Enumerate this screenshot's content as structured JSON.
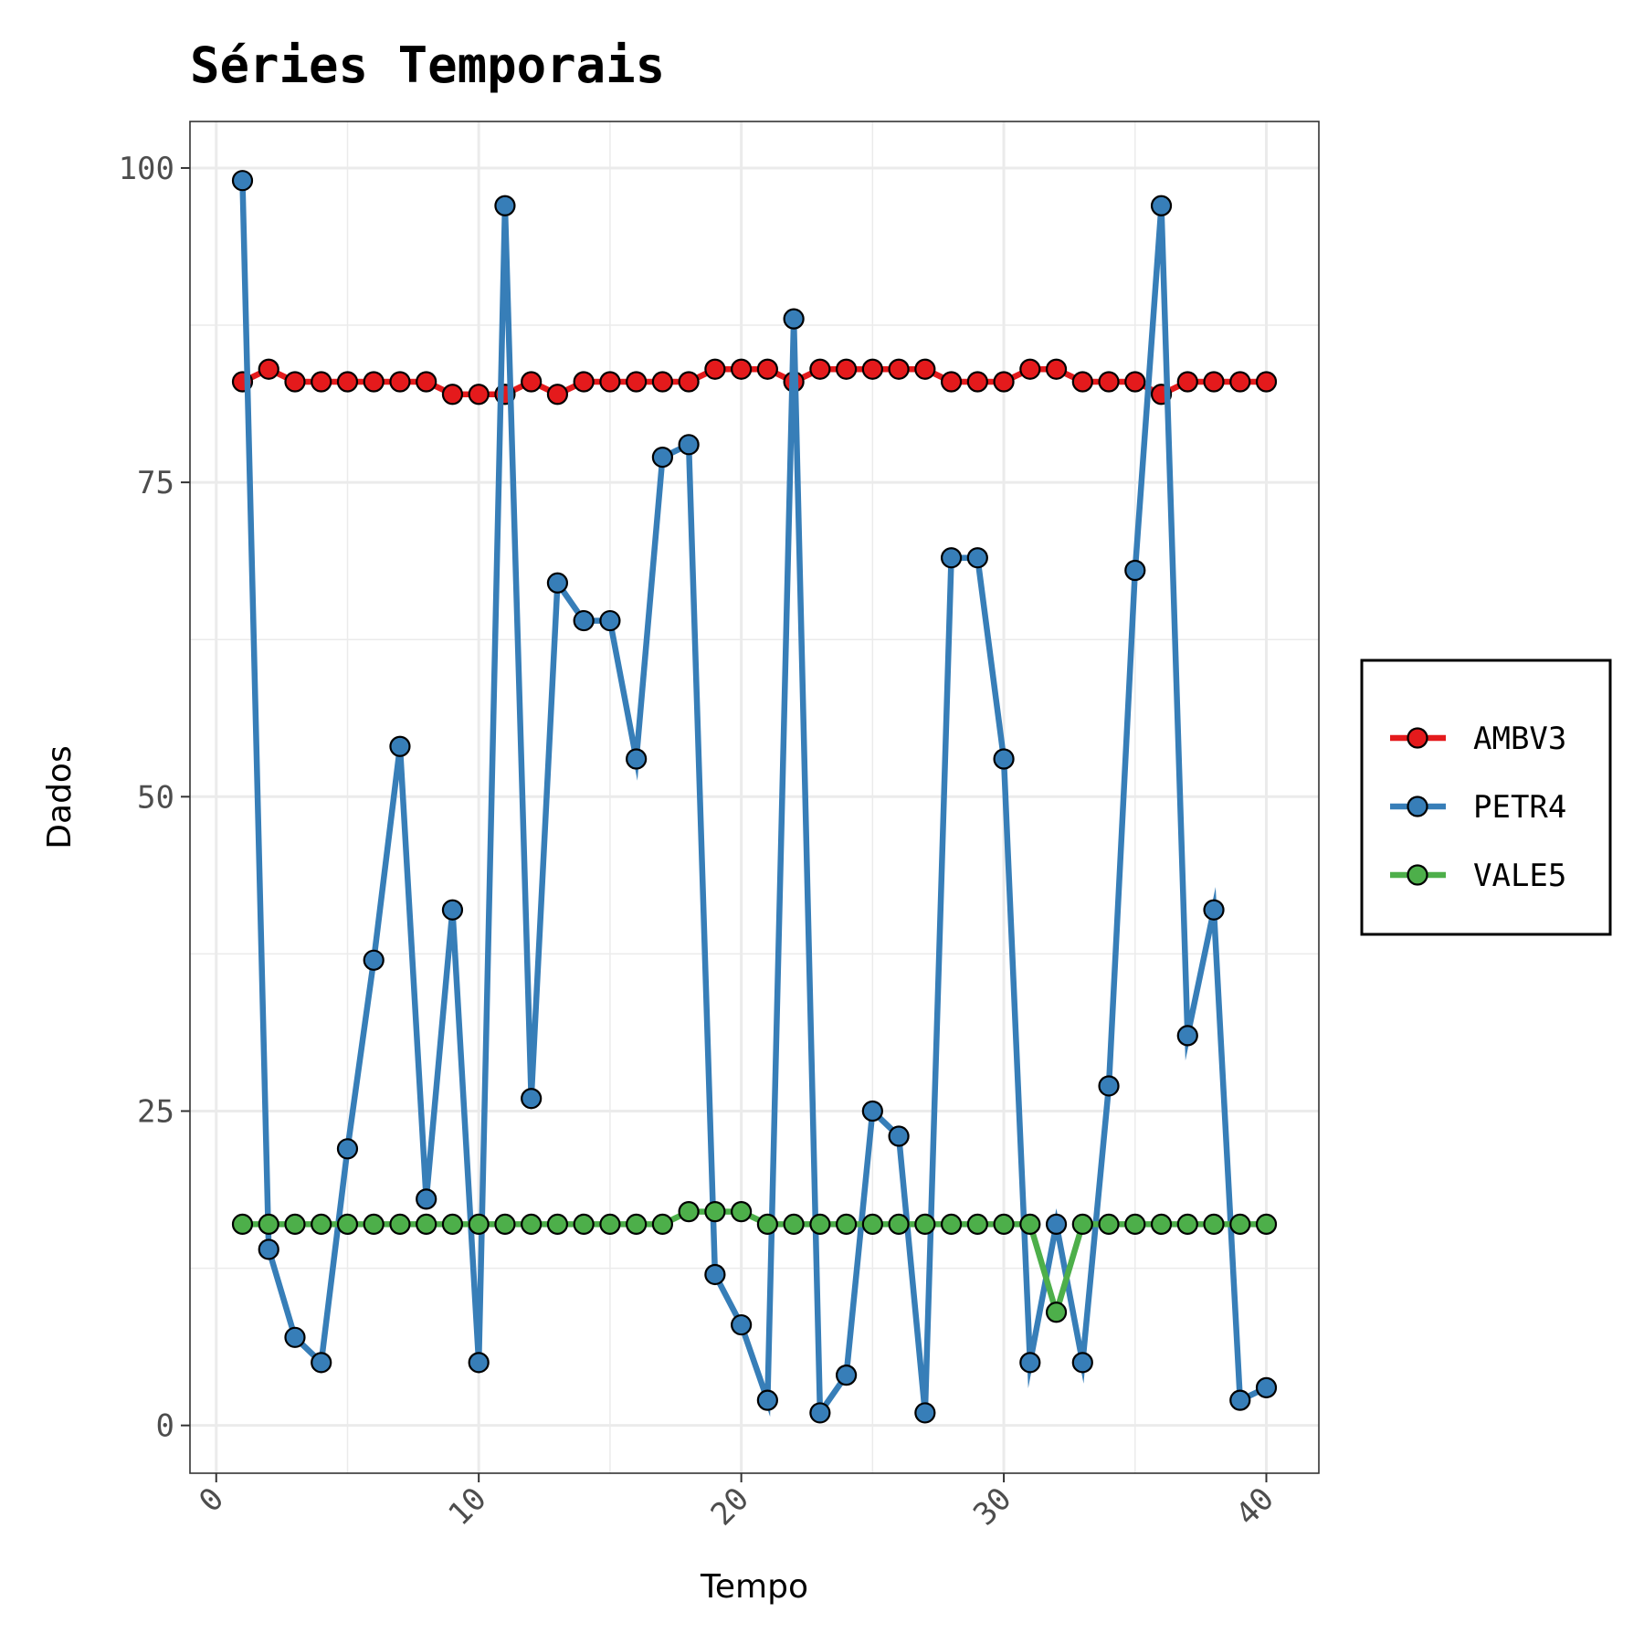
{
  "chart_data": {
    "type": "line",
    "title": "Séries Temporais",
    "xlabel": "Tempo",
    "ylabel": "Dados",
    "xlim": [
      -1,
      42
    ],
    "ylim": [
      -3.8,
      103.7
    ],
    "x_ticks": [
      0,
      10,
      20,
      30,
      40
    ],
    "y_ticks": [
      0,
      25,
      50,
      75,
      100
    ],
    "x_tick_labels": [
      "0",
      "10",
      "20",
      "30",
      "40"
    ],
    "y_tick_labels": [
      "0",
      "25",
      "50",
      "75",
      "100"
    ],
    "grid": true,
    "legend_position": "right",
    "x": [
      1,
      2,
      3,
      4,
      5,
      6,
      7,
      8,
      9,
      10,
      11,
      12,
      13,
      14,
      15,
      16,
      17,
      18,
      19,
      20,
      21,
      22,
      23,
      24,
      25,
      26,
      27,
      28,
      29,
      30,
      31,
      32,
      33,
      34,
      35,
      36,
      37,
      38,
      39,
      40
    ],
    "series": [
      {
        "name": "AMBV3",
        "color": "#e41a1c",
        "values": [
          83,
          84,
          83,
          83,
          83,
          83,
          83,
          83,
          82,
          82,
          82,
          83,
          82,
          83,
          83,
          83,
          83,
          83,
          84,
          84,
          84,
          83,
          84,
          84,
          84,
          84,
          84,
          83,
          83,
          83,
          84,
          84,
          83,
          83,
          83,
          82,
          83,
          83,
          83,
          83
        ]
      },
      {
        "name": "PETR4",
        "color": "#377eb8",
        "values": [
          99,
          14,
          7,
          5,
          22,
          37,
          54,
          18,
          41,
          5,
          97,
          26,
          67,
          64,
          64,
          53,
          77,
          78,
          12,
          8,
          2,
          88,
          1,
          4,
          25,
          23,
          1,
          69,
          69,
          53,
          5,
          16,
          5,
          27,
          68,
          97,
          31,
          41,
          2,
          3
        ]
      },
      {
        "name": "VALE5",
        "color": "#4daf4a",
        "values": [
          16,
          16,
          16,
          16,
          16,
          16,
          16,
          16,
          16,
          16,
          16,
          16,
          16,
          16,
          16,
          16,
          16,
          17,
          17,
          17,
          16,
          16,
          16,
          16,
          16,
          16,
          16,
          16,
          16,
          16,
          16,
          9,
          16,
          16,
          16,
          16,
          16,
          16,
          16,
          16
        ]
      }
    ]
  }
}
